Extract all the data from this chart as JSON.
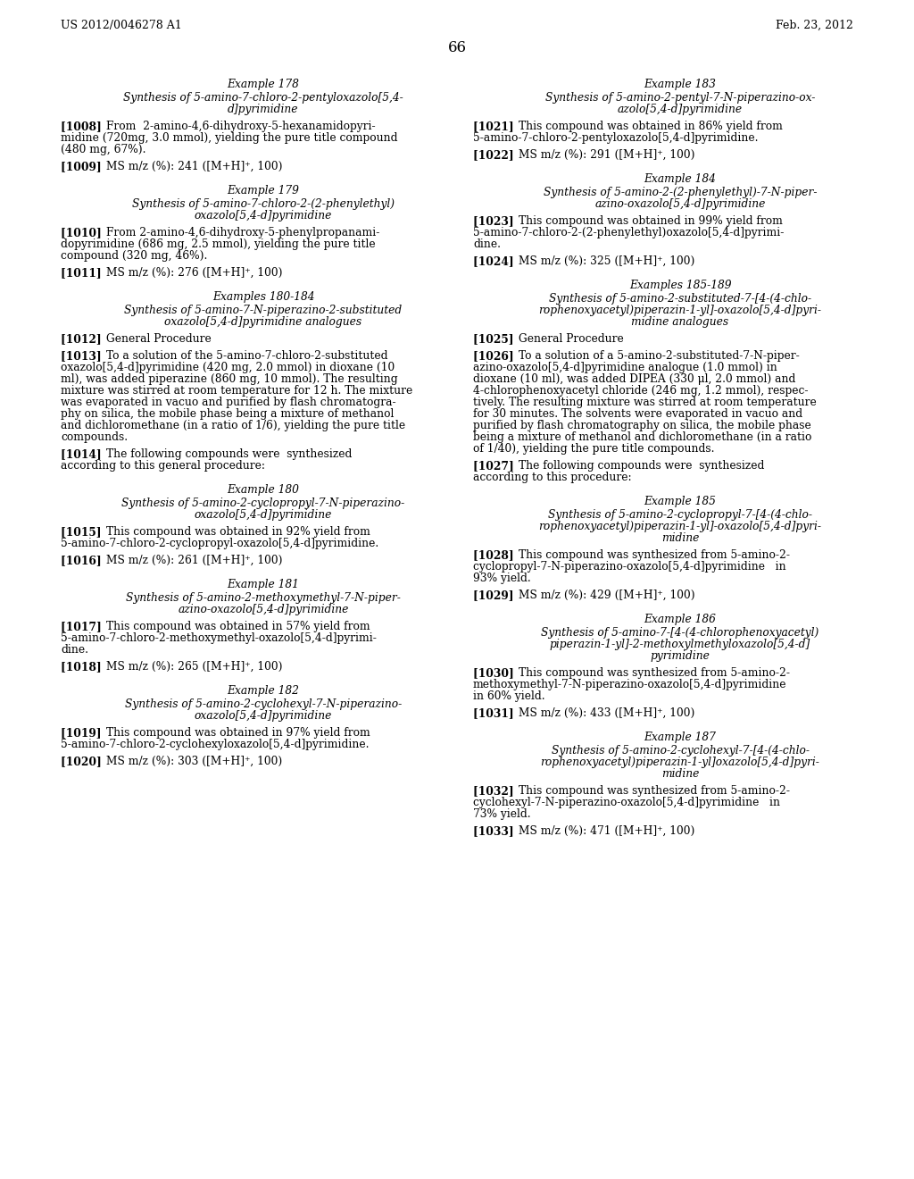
{
  "header_left": "US 2012/0046278 A1",
  "header_right": "Feb. 23, 2012",
  "page_number": "66",
  "background_color": "#ffffff",
  "left_column": [
    {
      "type": "heading_center",
      "text": "Example 178"
    },
    {
      "type": "subheading_center",
      "lines": [
        "Synthesis of 5-amino-7-chloro-2-pentyloxazolo[5,4-",
        "d]pyrimidine"
      ]
    },
    {
      "type": "paragraph",
      "tag": "[1008]",
      "indent": true,
      "lines": [
        "From  2-amino-4,6-dihydroxy-5-hexanamidopyri-",
        "midine (720mg, 3.0 mmol), yielding the pure title compound",
        "(480 mg, 67%)."
      ]
    },
    {
      "type": "paragraph",
      "tag": "[1009]",
      "indent": false,
      "lines": [
        "MS m/z (%): 241 ([M+H]⁺, 100)"
      ]
    },
    {
      "type": "heading_center",
      "text": "Example 179"
    },
    {
      "type": "subheading_center",
      "lines": [
        "Synthesis of 5-amino-7-chloro-2-(2-phenylethyl)",
        "oxazolo[5,4-d]pyrimidine"
      ]
    },
    {
      "type": "paragraph",
      "tag": "[1010]",
      "indent": true,
      "lines": [
        "From 2-amino-4,6-dihydroxy-5-phenylpropanami-",
        "dopyrimidine (686 mg, 2.5 mmol), yielding the pure title",
        "compound (320 mg, 46%)."
      ]
    },
    {
      "type": "paragraph",
      "tag": "[1011]",
      "indent": false,
      "lines": [
        "MS m/z (%): 276 ([M+H]⁺, 100)"
      ]
    },
    {
      "type": "heading_center",
      "text": "Examples 180-184"
    },
    {
      "type": "subheading_center",
      "lines": [
        "Synthesis of 5-amino-7-N-piperazino-2-substituted",
        "oxazolo[5,4-d]pyrimidine analogues"
      ]
    },
    {
      "type": "paragraph",
      "tag": "[1012]",
      "indent": false,
      "lines": [
        "General Procedure"
      ]
    },
    {
      "type": "paragraph",
      "tag": "[1013]",
      "indent": true,
      "lines": [
        "To a solution of the 5-amino-7-chloro-2-substituted",
        "oxazolo[5,4-d]pyrimidine (420 mg, 2.0 mmol) in dioxane (10",
        "ml), was added piperazine (860 mg, 10 mmol). The resulting",
        "mixture was stirred at room temperature for 12 h. The mixture",
        "was evaporated in vacuo and purified by flash chromatogra-",
        "phy on silica, the mobile phase being a mixture of methanol",
        "and dichloromethane (in a ratio of 1/6), yielding the pure title",
        "compounds."
      ]
    },
    {
      "type": "paragraph",
      "tag": "[1014]",
      "indent": true,
      "lines": [
        "The following compounds were  synthesized",
        "according to this general procedure:"
      ]
    },
    {
      "type": "heading_center",
      "text": "Example 180"
    },
    {
      "type": "subheading_center",
      "lines": [
        "Synthesis of 5-amino-2-cyclopropyl-7-N-piperazino-",
        "oxazolo[5,4-d]pyrimidine"
      ]
    },
    {
      "type": "paragraph",
      "tag": "[1015]",
      "indent": true,
      "lines": [
        "This compound was obtained in 92% yield from",
        "5-amino-7-chloro-2-cyclopropyl-oxazolo[5,4-d]pyrimidine."
      ]
    },
    {
      "type": "paragraph",
      "tag": "[1016]",
      "indent": false,
      "lines": [
        "MS m/z (%): 261 ([M+H]⁺, 100)"
      ]
    },
    {
      "type": "heading_center",
      "text": "Example 181"
    },
    {
      "type": "subheading_center",
      "lines": [
        "Synthesis of 5-amino-2-methoxymethyl-7-N-piper-",
        "azino-oxazolo[5,4-d]pyrimidine"
      ]
    },
    {
      "type": "paragraph",
      "tag": "[1017]",
      "indent": true,
      "lines": [
        "This compound was obtained in 57% yield from",
        "5-amino-7-chloro-2-methoxymethyl-oxazolo[5,4-d]pyrimi-",
        "dine."
      ]
    },
    {
      "type": "paragraph",
      "tag": "[1018]",
      "indent": false,
      "lines": [
        "MS m/z (%): 265 ([M+H]⁺, 100)"
      ]
    },
    {
      "type": "heading_center",
      "text": "Example 182"
    },
    {
      "type": "subheading_center",
      "lines": [
        "Synthesis of 5-amino-2-cyclohexyl-7-N-piperazino-",
        "oxazolo[5,4-d]pyrimidine"
      ]
    },
    {
      "type": "paragraph",
      "tag": "[1019]",
      "indent": true,
      "lines": [
        "This compound was obtained in 97% yield from",
        "5-amino-7-chloro-2-cyclohexyloxazolo[5,4-d]pyrimidine."
      ]
    },
    {
      "type": "paragraph",
      "tag": "[1020]",
      "indent": false,
      "lines": [
        "MS m/z (%): 303 ([M+H]⁺, 100)"
      ]
    }
  ],
  "right_column": [
    {
      "type": "heading_center",
      "text": "Example 183"
    },
    {
      "type": "subheading_center",
      "lines": [
        "Synthesis of 5-amino-2-pentyl-7-N-piperazino-ox-",
        "azolo[5,4-d]pyrimidine"
      ]
    },
    {
      "type": "paragraph",
      "tag": "[1021]",
      "indent": true,
      "lines": [
        "This compound was obtained in 86% yield from",
        "5-amino-7-chloro-2-pentyloxazolo[5,4-d]pyrimidine."
      ]
    },
    {
      "type": "paragraph",
      "tag": "[1022]",
      "indent": false,
      "lines": [
        "MS m/z (%): 291 ([M+H]⁺, 100)"
      ]
    },
    {
      "type": "heading_center",
      "text": "Example 184"
    },
    {
      "type": "subheading_center",
      "lines": [
        "Synthesis of 5-amino-2-(2-phenylethyl)-7-N-piper-",
        "azino-oxazolo[5,4-d]pyrimidine"
      ]
    },
    {
      "type": "paragraph",
      "tag": "[1023]",
      "indent": true,
      "lines": [
        "This compound was obtained in 99% yield from",
        "5-amino-7-chloro-2-(2-phenylethyl)oxazolo[5,4-d]pyrimi-",
        "dine."
      ]
    },
    {
      "type": "paragraph",
      "tag": "[1024]",
      "indent": false,
      "lines": [
        "MS m/z (%): 325 ([M+H]⁺, 100)"
      ]
    },
    {
      "type": "heading_center",
      "text": "Examples 185-189"
    },
    {
      "type": "subheading_center",
      "lines": [
        "Synthesis of 5-amino-2-substituted-7-[4-(4-chlo-",
        "rophenoxyacetyl)piperazin-1-yl]-oxazolo[5,4-d]pyri-",
        "midine analogues"
      ]
    },
    {
      "type": "paragraph",
      "tag": "[1025]",
      "indent": false,
      "lines": [
        "General Procedure"
      ]
    },
    {
      "type": "paragraph",
      "tag": "[1026]",
      "indent": true,
      "lines": [
        "To a solution of a 5-amino-2-substituted-7-N-piper-",
        "azino-oxazolo[5,4-d]pyrimidine analogue (1.0 mmol) in",
        "dioxane (10 ml), was added DIPEA (330 μl, 2.0 mmol) and",
        "4-chlorophenoxyacetyl chloride (246 mg, 1.2 mmol), respec-",
        "tively. The resulting mixture was stirred at room temperature",
        "for 30 minutes. The solvents were evaporated in vacuo and",
        "purified by flash chromatography on silica, the mobile phase",
        "being a mixture of methanol and dichloromethane (in a ratio",
        "of 1/40), yielding the pure title compounds."
      ]
    },
    {
      "type": "paragraph",
      "tag": "[1027]",
      "indent": true,
      "lines": [
        "The following compounds were  synthesized",
        "according to this procedure:"
      ]
    },
    {
      "type": "heading_center",
      "text": "Example 185"
    },
    {
      "type": "subheading_center",
      "lines": [
        "Synthesis of 5-amino-2-cyclopropyl-7-[4-(4-chlo-",
        "rophenoxyacetyl)piperazin-1-yl]-oxazolo[5,4-d]pyri-",
        "midine"
      ]
    },
    {
      "type": "paragraph",
      "tag": "[1028]",
      "indent": true,
      "lines": [
        "This compound was synthesized from 5-amino-2-",
        "cyclopropyl-7-N-piperazino-oxazolo[5,4-d]pyrimidine   in",
        "93% yield."
      ]
    },
    {
      "type": "paragraph",
      "tag": "[1029]",
      "indent": false,
      "lines": [
        "MS m/z (%): 429 ([M+H]⁺, 100)"
      ]
    },
    {
      "type": "heading_center",
      "text": "Example 186"
    },
    {
      "type": "subheading_center",
      "lines": [
        "Synthesis of 5-amino-7-[4-(4-chlorophenoxyacetyl)",
        "piperazin-1-yl]-2-methoxylmethyloxazolo[5,4-d]",
        "pyrimidine"
      ]
    },
    {
      "type": "paragraph",
      "tag": "[1030]",
      "indent": true,
      "lines": [
        "This compound was synthesized from 5-amino-2-",
        "methoxymethyl-7-N-piperazino-oxazolo[5,4-d]pyrimidine",
        "in 60% yield."
      ]
    },
    {
      "type": "paragraph",
      "tag": "[1031]",
      "indent": false,
      "lines": [
        "MS m/z (%): 433 ([M+H]⁺, 100)"
      ]
    },
    {
      "type": "heading_center",
      "text": "Example 187"
    },
    {
      "type": "subheading_center",
      "lines": [
        "Synthesis of 5-amino-2-cyclohexyl-7-[4-(4-chlo-",
        "rophenoxyacetyl)piperazin-1-yl]oxazolo[5,4-d]pyri-",
        "midine"
      ]
    },
    {
      "type": "paragraph",
      "tag": "[1032]",
      "indent": true,
      "lines": [
        "This compound was synthesized from 5-amino-2-",
        "cyclohexyl-7-N-piperazino-oxazolo[5,4-d]pyrimidine   in",
        "73% yield."
      ]
    },
    {
      "type": "paragraph",
      "tag": "[1033]",
      "indent": false,
      "lines": [
        "MS m/z (%): 471 ([M+H]⁺, 100)"
      ]
    }
  ]
}
